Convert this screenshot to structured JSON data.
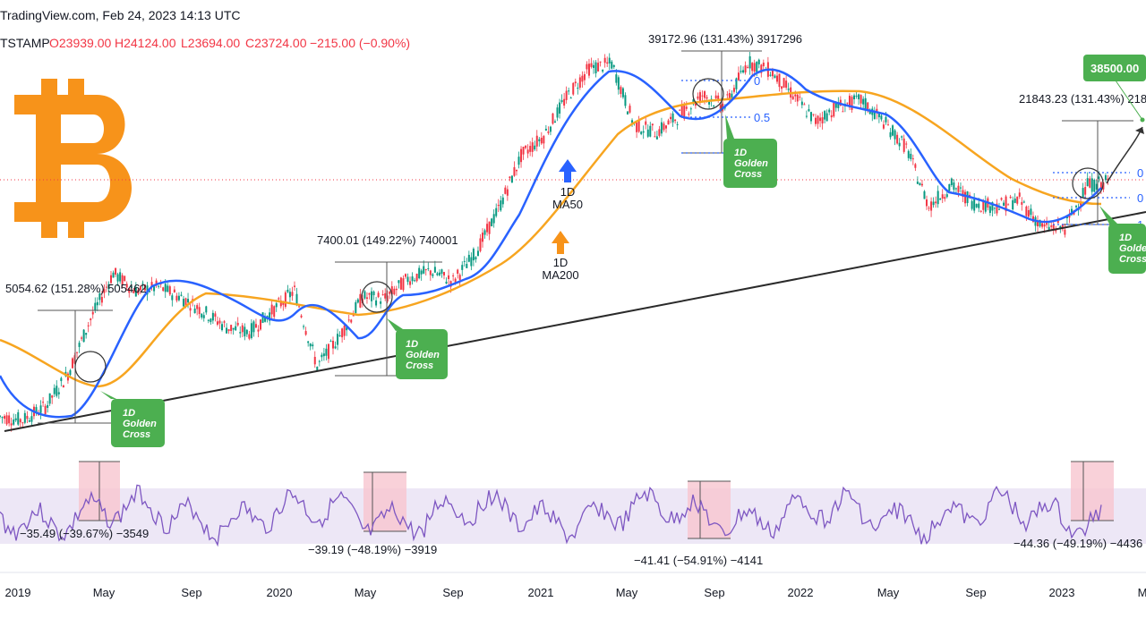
{
  "header": {
    "source": "TradingView.com, Feb 24, 2023 14:13 UTC",
    "symbol": "TSTAMP",
    "open": "O23939.00",
    "high": "H24124.00",
    "low": "L23694.00",
    "close": "C23724.00",
    "change": "−215.00 (−0.90%)"
  },
  "colors": {
    "price_up": "#089981",
    "price_down": "#f23645",
    "ma50": "#2962ff",
    "ma200": "#f7a520",
    "trendline": "#2a2a2a",
    "rsi": "#7e57c2",
    "rsi_band": "#ede7f6",
    "callout": "#4caf50",
    "bitcoin_logo": "#f7931a"
  },
  "logo": {
    "icon": "bitcoin-logo-icon"
  },
  "chart_data": {
    "type": "line",
    "x_axis": {
      "ticks": [
        "2019",
        "May",
        "Sep",
        "2020",
        "May",
        "Sep",
        "2021",
        "May",
        "Sep",
        "2022",
        "May",
        "Sep",
        "2023",
        "M"
      ]
    },
    "series": [
      {
        "name": "1D MA50"
      },
      {
        "name": "1D MA200"
      }
    ],
    "ma_labels": [
      {
        "line1": "1D",
        "line2": "MA50"
      },
      {
        "line1": "1D",
        "line2": "MA200"
      }
    ],
    "price_series": [
      [
        "2019-01",
        3700
      ],
      [
        "2019-02",
        3600
      ],
      [
        "2019-03",
        4000
      ],
      [
        "2019-04",
        5200
      ],
      [
        "2019-05",
        8000
      ],
      [
        "2019-06",
        11500
      ],
      [
        "2019-07",
        10000
      ],
      [
        "2019-08",
        10300
      ],
      [
        "2019-09",
        9500
      ],
      [
        "2019-10",
        8500
      ],
      [
        "2019-11",
        7500
      ],
      [
        "2019-12",
        7200
      ],
      [
        "2020-01",
        8500
      ],
      [
        "2020-02",
        10000
      ],
      [
        "2020-03",
        5500
      ],
      [
        "2020-04",
        7000
      ],
      [
        "2020-05",
        9500
      ],
      [
        "2020-06",
        9400
      ],
      [
        "2020-07",
        11000
      ],
      [
        "2020-08",
        11700
      ],
      [
        "2020-09",
        10800
      ],
      [
        "2020-10",
        13500
      ],
      [
        "2020-11",
        19000
      ],
      [
        "2020-12",
        29000
      ],
      [
        "2021-01",
        34000
      ],
      [
        "2021-02",
        46000
      ],
      [
        "2021-03",
        58000
      ],
      [
        "2021-04",
        60000
      ],
      [
        "2021-05",
        37000
      ],
      [
        "2021-06",
        35000
      ],
      [
        "2021-07",
        40000
      ],
      [
        "2021-08",
        47000
      ],
      [
        "2021-09",
        43000
      ],
      [
        "2021-10",
        61000
      ],
      [
        "2021-11",
        57000
      ],
      [
        "2021-12",
        47000
      ],
      [
        "2022-01",
        38000
      ],
      [
        "2022-02",
        43000
      ],
      [
        "2022-03",
        45000
      ],
      [
        "2022-04",
        38000
      ],
      [
        "2022-05",
        31000
      ],
      [
        "2022-06",
        19500
      ],
      [
        "2022-07",
        23000
      ],
      [
        "2022-08",
        20000
      ],
      [
        "2022-09",
        19500
      ],
      [
        "2022-10",
        20500
      ],
      [
        "2022-11",
        16500
      ],
      [
        "2022-12",
        16500
      ],
      [
        "2023-01",
        23000
      ],
      [
        "2023-02",
        23700
      ]
    ],
    "annotations": [
      {
        "id": "measure-2019",
        "text": "5054.62 (151.28%) 505462"
      },
      {
        "id": "measure-2020",
        "text": "7400.01 (149.22%) 740001"
      },
      {
        "id": "measure-2021",
        "text": "39172.96 (131.43%) 3917296"
      },
      {
        "id": "measure-2023",
        "text": "21843.23 (131.43%) 218"
      }
    ],
    "callouts": [
      {
        "id": "gc-2019",
        "lines": [
          "1D",
          "Golden",
          "Cross"
        ]
      },
      {
        "id": "gc-2020",
        "lines": [
          "1D",
          "Golden",
          "Cross"
        ]
      },
      {
        "id": "gc-2021",
        "lines": [
          "1D",
          "Golden",
          "Cross"
        ]
      },
      {
        "id": "gc-2023",
        "lines": [
          "1D",
          "Golden",
          "Cross"
        ]
      }
    ],
    "target_label": "38500.00",
    "fib_levels": [
      "0",
      "0.5",
      "1",
      "0",
      "0",
      "1"
    ],
    "rsi_annotations": [
      {
        "id": "rsi-2019",
        "text": "−35.49 (−39.67%) −3549"
      },
      {
        "id": "rsi-2020",
        "text": "−39.19 (−48.19%) −3919"
      },
      {
        "id": "rsi-2021",
        "text": "−41.41 (−54.91%) −4141"
      },
      {
        "id": "rsi-2023",
        "text": "−44.36 (−49.19%) −4436"
      }
    ]
  }
}
